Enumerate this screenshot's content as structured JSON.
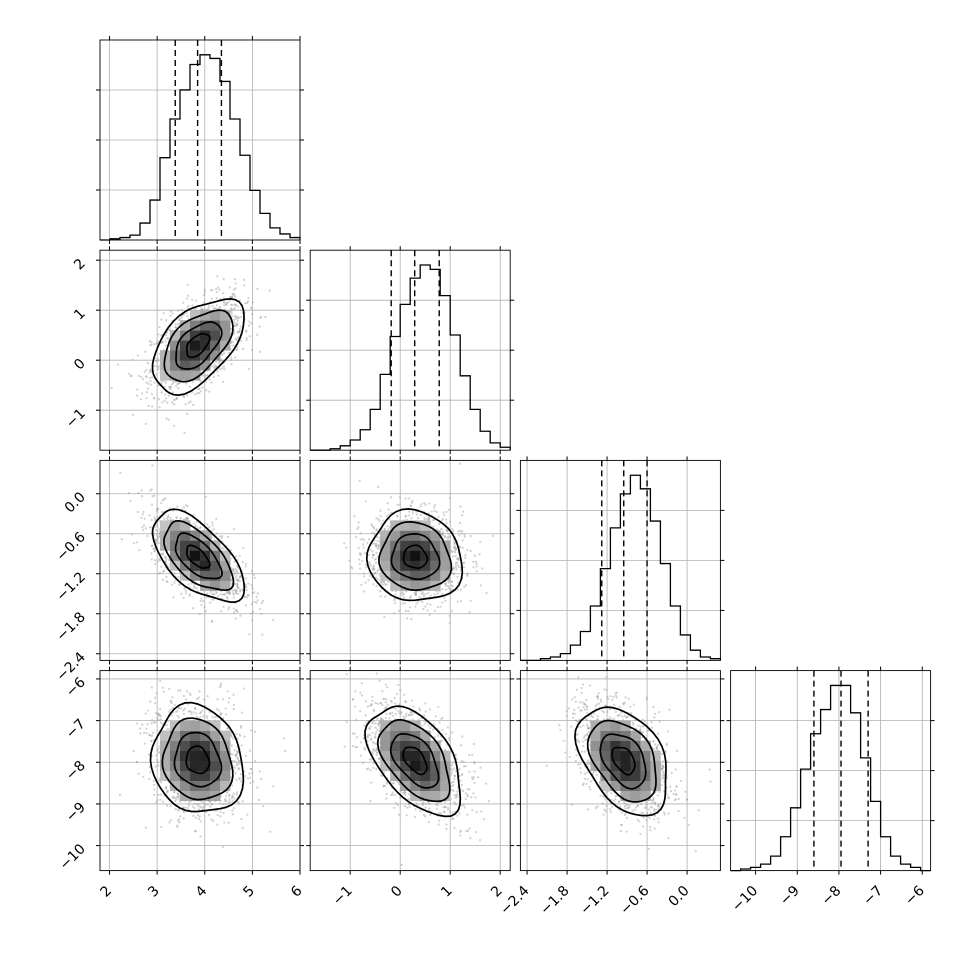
{
  "chart_data": {
    "type": "corner",
    "grid": true,
    "axis_labels": [
      "",
      "",
      "",
      ""
    ],
    "quantiles": [
      0.16,
      0.5,
      0.84
    ],
    "parameters": [
      {
        "mean": 3.85,
        "sd": 0.48,
        "range": [
          1.8,
          6.0
        ],
        "ticks": [
          2,
          3,
          4,
          5,
          6
        ],
        "tick_labels": [
          "2",
          "3",
          "4",
          "5",
          "6"
        ],
        "quantile_values": [
          3.38,
          3.85,
          4.35
        ]
      },
      {
        "mean": 0.3,
        "sd": 0.47,
        "range": [
          -1.8,
          2.2
        ],
        "ticks": [
          -1,
          0,
          1,
          2
        ],
        "tick_labels": [
          "−1",
          "0",
          "1",
          "2"
        ],
        "quantile_values": [
          -0.18,
          0.29,
          0.78
        ]
      },
      {
        "mean": -0.95,
        "sd": 0.34,
        "range": [
          -2.5,
          0.5
        ],
        "ticks": [
          -2.4,
          -1.8,
          -1.2,
          -0.6,
          0.0
        ],
        "tick_labels": [
          "−2.4",
          "−1.8",
          "−1.2",
          "−0.6",
          "0.0"
        ],
        "quantile_values": [
          -1.28,
          -0.95,
          -0.6
        ]
      },
      {
        "mean": -7.95,
        "sd": 0.65,
        "range": [
          -10.6,
          -5.8
        ],
        "ticks": [
          -10,
          -9,
          -8,
          -7,
          -6
        ],
        "tick_labels": [
          "−10",
          "−9",
          "−8",
          "−7",
          "−6"
        ],
        "quantile_values": [
          -8.6,
          -7.95,
          -7.3
        ]
      }
    ],
    "histograms": [
      {
        "bins": [
          1.8,
          6.0
        ],
        "counts": [
          0,
          1,
          2,
          4,
          14,
          33,
          68,
          100,
          124,
          145,
          153,
          150,
          131,
          100,
          70,
          41,
          22,
          10,
          5,
          2
        ]
      },
      {
        "bins": [
          -1.8,
          2.2
        ],
        "counts": [
          0,
          0,
          1,
          3,
          7,
          14,
          28,
          52,
          78,
          100,
          118,
          127,
          124,
          106,
          79,
          51,
          28,
          13,
          5,
          2
        ]
      },
      {
        "bins": [
          -2.5,
          0.5
        ],
        "counts": [
          0,
          0,
          1,
          2,
          4,
          9,
          17,
          32,
          54,
          78,
          98,
          109,
          101,
          82,
          57,
          32,
          15,
          6,
          2,
          1
        ]
      },
      {
        "bins": [
          -10.6,
          -5.8
        ],
        "counts": [
          0,
          1,
          2,
          4,
          9,
          21,
          39,
          63,
          85,
          100,
          115,
          115,
          98,
          70,
          43,
          21,
          9,
          4,
          2,
          0
        ]
      }
    ],
    "correlations": [
      {
        "x": 0,
        "y": 1,
        "r": 0.52
      },
      {
        "x": 0,
        "y": 2,
        "r": -0.6
      },
      {
        "x": 1,
        "y": 2,
        "r": -0.08
      },
      {
        "x": 0,
        "y": 3,
        "r": -0.12
      },
      {
        "x": 1,
        "y": 3,
        "r": -0.5
      },
      {
        "x": 2,
        "y": 3,
        "r": -0.4
      }
    ]
  }
}
